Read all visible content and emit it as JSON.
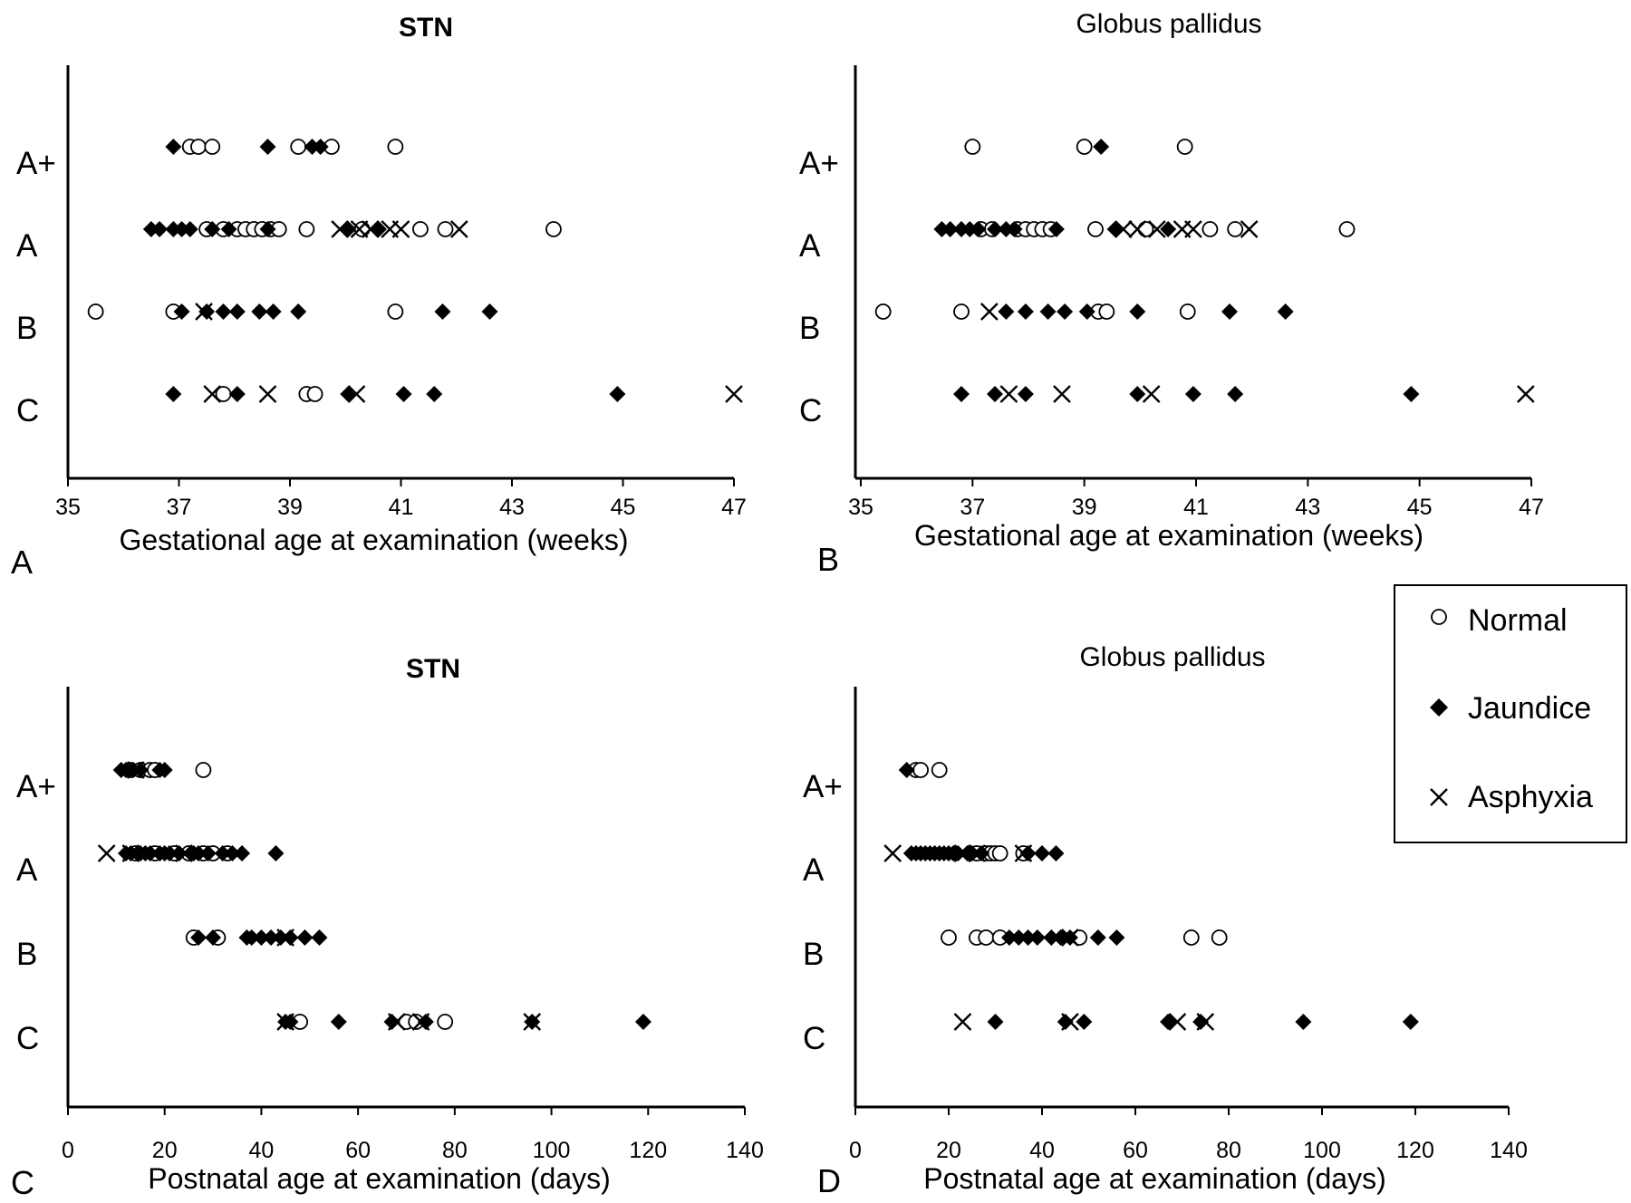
{
  "legend": {
    "entries": [
      {
        "label": "Normal",
        "marker": "open-circle"
      },
      {
        "label": "Jaundice",
        "marker": "filled-diamond"
      },
      {
        "label": "Asphyxia",
        "marker": "cross"
      }
    ]
  },
  "colors": {
    "marker": "#000000",
    "background": "#ffffff",
    "axis": "#000000"
  },
  "chart_data": [
    {
      "panel": "A",
      "type": "scatter",
      "title": "STN",
      "title_bold": true,
      "xlabel": "Gestational age at examination (weeks)",
      "xlim": [
        35,
        47
      ],
      "xticks": [
        35,
        37,
        39,
        41,
        43,
        45,
        47
      ],
      "categories": [
        "A+",
        "A",
        "B",
        "C"
      ],
      "series": [
        {
          "name": "Normal",
          "points": {
            "A+": [
              37.2,
              37.35,
              37.6,
              39.15,
              39.75,
              40.9
            ],
            "A": [
              37.5,
              37.8,
              38.05,
              38.2,
              38.35,
              38.5,
              38.65,
              38.8,
              39.3,
              40.3,
              41.35,
              41.8,
              43.75
            ],
            "B": [
              35.5,
              36.9,
              40.9
            ],
            "C": [
              37.8,
              39.3,
              39.45
            ]
          }
        },
        {
          "name": "Jaundice",
          "points": {
            "A+": [
              36.9,
              38.6,
              39.4,
              39.55
            ],
            "A": [
              36.5,
              36.65,
              36.9,
              37.05,
              37.2,
              37.6,
              37.9,
              38.6,
              40.05,
              40.6
            ],
            "B": [
              37.05,
              37.5,
              37.8,
              38.05,
              38.45,
              38.7,
              39.15,
              41.75,
              42.6
            ],
            "C": [
              36.9,
              38.05,
              40.05,
              41.05,
              41.6,
              44.9
            ]
          }
        },
        {
          "name": "Asphyxia",
          "points": {
            "A+": [],
            "A": [
              39.9,
              40.25,
              40.45,
              40.8,
              41.0,
              42.05
            ],
            "B": [
              37.45
            ],
            "C": [
              37.6,
              38.6,
              40.2,
              47.0
            ]
          }
        }
      ]
    },
    {
      "panel": "B",
      "type": "scatter",
      "title": "Globus pallidus",
      "title_bold": false,
      "xlabel": "Gestational age at examination (weeks)",
      "xlim": [
        35,
        47
      ],
      "xticks": [
        35,
        37,
        39,
        41,
        43,
        45,
        47
      ],
      "categories": [
        "A+",
        "A",
        "B",
        "C"
      ],
      "series": [
        {
          "name": "Normal",
          "points": {
            "A+": [
              37.0,
              39.0,
              40.8
            ],
            "A": [
              37.15,
              37.35,
              37.8,
              37.95,
              38.1,
              38.25,
              38.4,
              39.2,
              40.1,
              41.25,
              41.7,
              43.7
            ],
            "B": [
              35.4,
              36.8,
              39.25,
              39.4,
              40.85
            ],
            "C": []
          }
        },
        {
          "name": "Jaundice",
          "points": {
            "A+": [
              39.3
            ],
            "A": [
              36.45,
              36.6,
              36.8,
              36.95,
              37.1,
              37.4,
              37.6,
              37.75,
              38.5,
              39.55,
              40.5
            ],
            "B": [
              37.6,
              37.95,
              38.35,
              38.65,
              39.05,
              39.95,
              41.6,
              42.6
            ],
            "C": [
              36.8,
              37.4,
              37.95,
              39.95,
              40.95,
              41.7,
              44.85
            ]
          }
        },
        {
          "name": "Asphyxia",
          "points": {
            "A+": [],
            "A": [
              39.7,
              39.95,
              40.3,
              40.75,
              40.95,
              41.95
            ],
            "B": [
              37.3
            ],
            "C": [
              37.65,
              38.6,
              40.2,
              46.9
            ]
          }
        }
      ]
    },
    {
      "panel": "C",
      "type": "scatter",
      "title": "STN",
      "title_bold": true,
      "xlabel": "Postnatal age at examination (days)",
      "xlim": [
        0,
        140
      ],
      "xticks": [
        0,
        20,
        40,
        60,
        80,
        100,
        120,
        140
      ],
      "categories": [
        "A+",
        "A",
        "B",
        "C"
      ],
      "series": [
        {
          "name": "Normal",
          "points": {
            "A+": [
              13,
              15,
              17,
              18,
              28
            ],
            "A": [
              14,
              18,
              22,
              25,
              28,
              30,
              33
            ],
            "B": [
              26,
              31
            ],
            "C": [
              48,
              70,
              72,
              78
            ]
          }
        },
        {
          "name": "Jaundice",
          "points": {
            "A+": [
              11,
              12,
              13.5,
              15,
              19,
              20
            ],
            "A": [
              12,
              13,
              15,
              16,
              17,
              19,
              20,
              21,
              23,
              26,
              27,
              29,
              32,
              34,
              36,
              43
            ],
            "B": [
              27,
              30,
              37,
              38,
              40,
              42,
              44,
              46,
              49,
              52
            ],
            "C": [
              45,
              46,
              56,
              67,
              74,
              96,
              119
            ]
          }
        },
        {
          "name": "Asphyxia",
          "points": {
            "A+": [
              14
            ],
            "A": [
              8,
              13,
              24
            ],
            "B": [
              45
            ],
            "C": [
              45,
              68,
              73,
              96
            ]
          }
        }
      ]
    },
    {
      "panel": "D",
      "type": "scatter",
      "title": "Globus pallidus",
      "title_bold": false,
      "xlabel": "Postnatal age at examination (days)",
      "xlim": [
        0,
        140
      ],
      "xticks": [
        0,
        20,
        40,
        60,
        80,
        100,
        120,
        140
      ],
      "categories": [
        "A+",
        "A",
        "B",
        "C"
      ],
      "series": [
        {
          "name": "Normal",
          "points": {
            "A+": [
              13,
              14,
              18
            ],
            "A": [
              26,
              28,
              29,
              30,
              31,
              36
            ],
            "B": [
              20,
              26,
              28,
              31,
              48,
              72,
              78
            ],
            "C": []
          }
        },
        {
          "name": "Jaundice",
          "points": {
            "A+": [
              11
            ],
            "A": [
              12,
              13,
              14,
              15,
              16,
              17,
              18,
              19,
              20,
              21,
              22,
              24,
              25,
              27,
              37,
              40,
              43
            ],
            "B": [
              33,
              35,
              37,
              39,
              42,
              44,
              46,
              52,
              56
            ],
            "C": [
              30,
              45,
              49,
              67,
              74,
              96,
              119
            ]
          }
        },
        {
          "name": "Asphyxia",
          "points": {
            "A+": [],
            "A": [
              8,
              23,
              26,
              36
            ],
            "B": [
              46
            ],
            "C": [
              23,
              46,
              69,
              75
            ]
          }
        }
      ]
    }
  ]
}
